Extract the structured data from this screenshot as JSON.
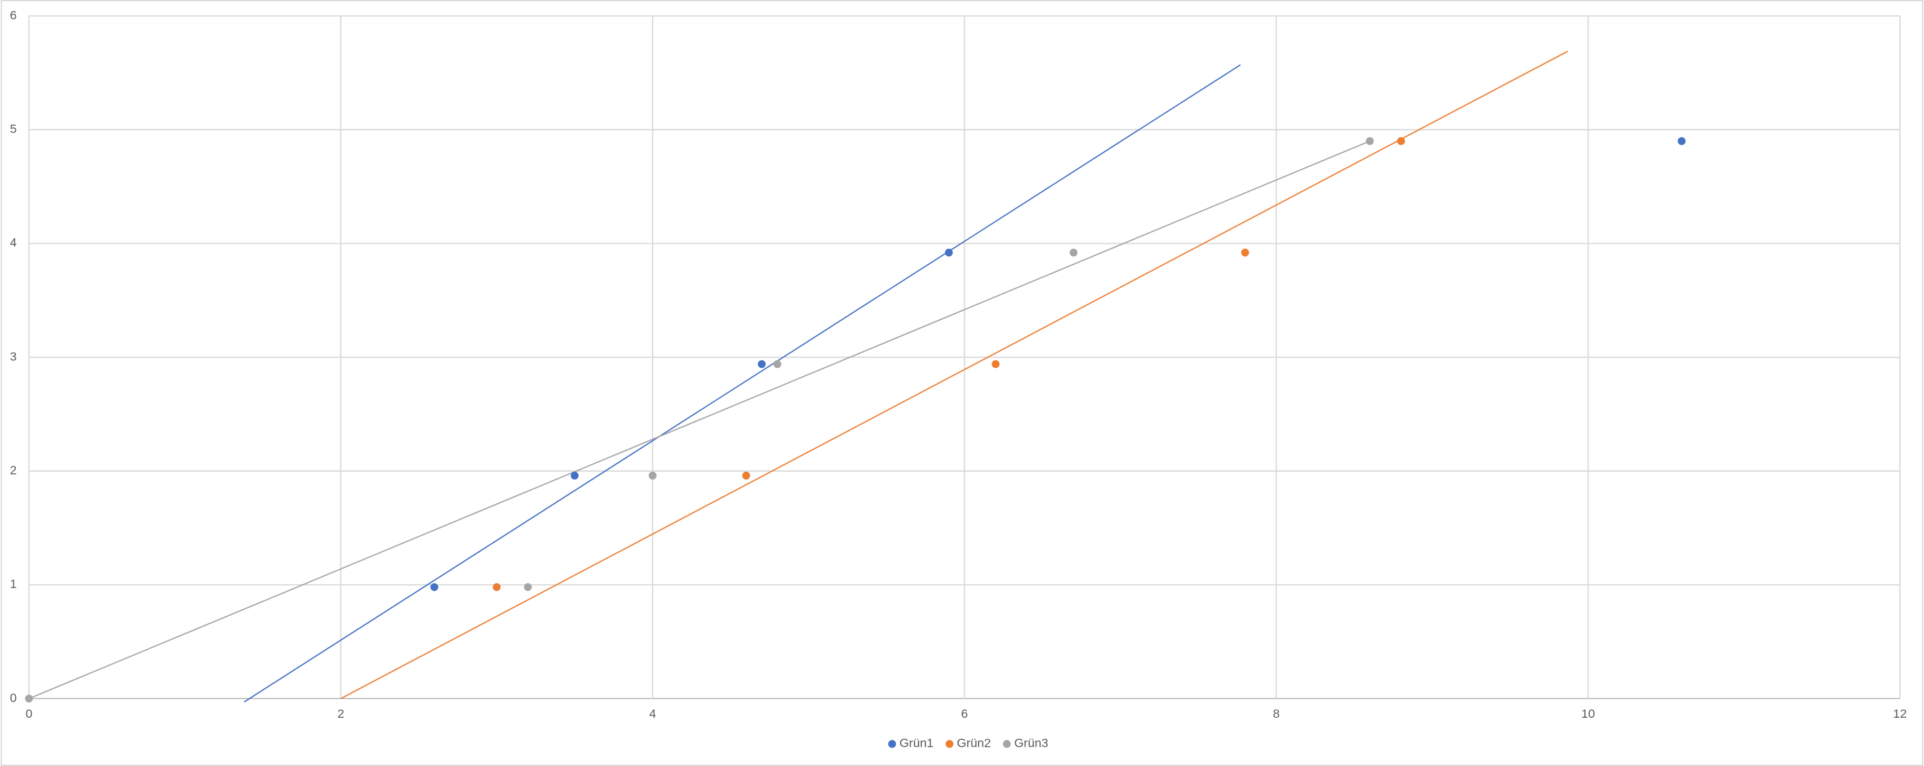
{
  "chart_data": {
    "type": "scatter",
    "series": [
      {
        "name": "Grün1",
        "color": "#4472c4",
        "x": [
          2.6,
          3.5,
          4.7,
          5.9,
          10.6
        ],
        "values": [
          0.98,
          1.96,
          2.94,
          3.92,
          4.9
        ],
        "trendline": {
          "x": [
            1.38,
            7.77
          ],
          "values": [
            -0.03,
            5.57
          ]
        }
      },
      {
        "name": "Grün2",
        "color": "#ed7d31",
        "x": [
          3.0,
          4.6,
          6.2,
          7.8,
          8.8
        ],
        "values": [
          0.98,
          1.96,
          2.94,
          3.92,
          4.9
        ],
        "trendline": {
          "x": [
            2.0,
            9.87
          ],
          "values": [
            0,
            5.69
          ]
        }
      },
      {
        "name": "Grün3",
        "color": "#a5a5a5",
        "x": [
          0,
          3.2,
          4.0,
          4.8,
          6.7,
          8.6
        ],
        "values": [
          0,
          0.98,
          1.96,
          2.94,
          3.92,
          4.9
        ],
        "trendline": {
          "x": [
            0,
            8.6
          ],
          "values": [
            0,
            4.9
          ]
        }
      }
    ],
    "xlim": [
      0,
      12
    ],
    "xticks": [
      0,
      2,
      4,
      6,
      8,
      10,
      12
    ],
    "ylim": [
      0,
      6
    ],
    "yticks": [
      0,
      1,
      2,
      3,
      4,
      5,
      6
    ],
    "grid": true,
    "legend": "bottom"
  }
}
